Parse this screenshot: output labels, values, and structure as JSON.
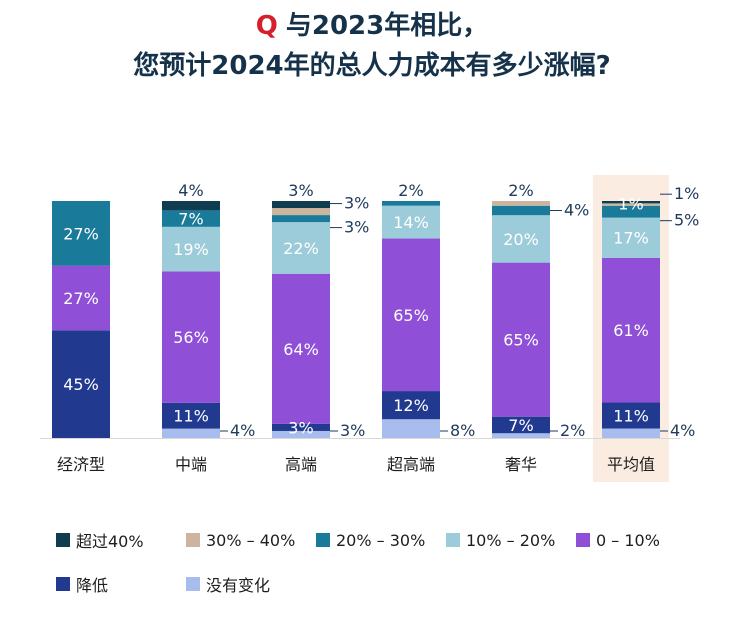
{
  "title": {
    "q_mark": "Q",
    "line1": "与2023年相比，",
    "line2": "您预计2024年的总人力成本有多少涨幅?"
  },
  "chart_data": {
    "type": "stacked-bar",
    "categories": [
      "经济型",
      "中端",
      "高端",
      "超高端",
      "奢华",
      "平均值"
    ],
    "highlighted_category": "平均值",
    "stack_order_bottom_to_top": [
      "没有变化",
      "降低",
      "0 – 10%",
      "10% – 20%",
      "20% – 30%",
      "30% – 40%",
      "超过40%"
    ],
    "series": [
      {
        "name": "没有变化",
        "color": "#a9bcee",
        "values": [
          0,
          4,
          3,
          8,
          2,
          4
        ]
      },
      {
        "name": "降低",
        "color": "#213a8f",
        "values": [
          45,
          11,
          3,
          12,
          7,
          11
        ]
      },
      {
        "name": "0 – 10%",
        "color": "#8f4fd6",
        "values": [
          27,
          56,
          64,
          65,
          65,
          61
        ]
      },
      {
        "name": "10% – 20%",
        "color": "#9ccbd9",
        "values": [
          0,
          19,
          22,
          14,
          20,
          17
        ]
      },
      {
        "name": "20% – 30%",
        "color": "#1a7a9a",
        "values": [
          27,
          7,
          3,
          2,
          4,
          5
        ]
      },
      {
        "name": "30% – 40%",
        "color": "#cdb49e",
        "values": [
          0,
          0,
          3,
          0,
          2,
          1
        ]
      },
      {
        "name": "超过40%",
        "color": "#0f3d4f",
        "values": [
          0,
          4,
          3,
          0,
          0,
          1
        ]
      }
    ],
    "data_labels": [
      [
        "",
        "4%",
        "3%",
        "8%",
        "2%",
        "4%"
      ],
      [
        "45%",
        "11%",
        "3%",
        "12%",
        "7%",
        "11%"
      ],
      [
        "27%",
        "56%",
        "64%",
        "65%",
        "65%",
        "61%"
      ],
      [
        "",
        "19%",
        "22%",
        "14%",
        "20%",
        "17%"
      ],
      [
        "27%",
        "7%",
        "3%",
        "2%",
        "4%",
        "5%"
      ],
      [
        "",
        "",
        "3%",
        "",
        "2%",
        "1%"
      ],
      [
        "",
        "4%",
        "3%",
        "",
        "",
        "1%"
      ]
    ],
    "legend": [
      "超过40%",
      "30% – 40%",
      "20% – 30%",
      "10% – 20%",
      "0 – 10%",
      "降低",
      "没有变化"
    ],
    "legend_placement": "bottom",
    "grid": false
  }
}
